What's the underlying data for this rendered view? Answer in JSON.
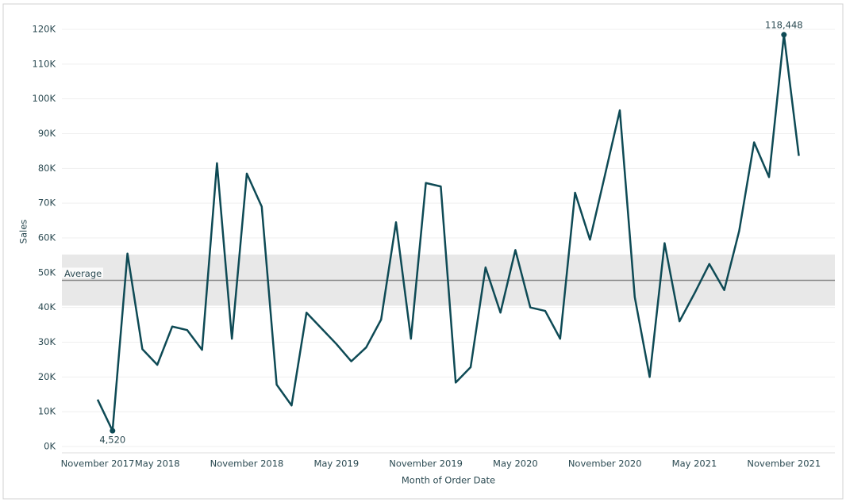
{
  "chart_data": {
    "type": "line",
    "x_label": "Month of Order Date",
    "y_label": "Sales",
    "categories": [
      "November 2017",
      null,
      null,
      null,
      "May 2018",
      null,
      null,
      null,
      null,
      null,
      "November 2018",
      null,
      null,
      null,
      null,
      null,
      "May 2019",
      null,
      null,
      null,
      null,
      null,
      "November 2019",
      null,
      null,
      null,
      null,
      null,
      "May 2020",
      null,
      null,
      null,
      null,
      null,
      "November 2020",
      null,
      null,
      null,
      null,
      null,
      "May 2021",
      null,
      null,
      null,
      null,
      null,
      "November 2021",
      null
    ],
    "series": [
      {
        "name": "Sales",
        "color": "#0e4a55",
        "values": [
          13500,
          4520,
          55500,
          28000,
          23500,
          34500,
          33500,
          27800,
          81500,
          31000,
          78500,
          69000,
          17800,
          11800,
          38500,
          34000,
          29500,
          24500,
          28500,
          36500,
          64500,
          31000,
          75800,
          74800,
          18400,
          22800,
          51500,
          38500,
          56500,
          40000,
          39000,
          31000,
          73000,
          59500,
          78000,
          96700,
          43000,
          20000,
          58500,
          36000,
          44000,
          52500,
          45000,
          62000,
          87500,
          77500,
          118448,
          83600
        ],
        "value_labels": [
          null,
          "4,520",
          null,
          null,
          null,
          null,
          null,
          null,
          null,
          null,
          null,
          null,
          null,
          null,
          null,
          null,
          null,
          null,
          null,
          null,
          null,
          null,
          null,
          null,
          null,
          null,
          null,
          null,
          null,
          null,
          null,
          null,
          null,
          null,
          null,
          null,
          null,
          null,
          null,
          null,
          null,
          null,
          null,
          null,
          null,
          null,
          "118,448",
          null
        ]
      }
    ],
    "reference_line": {
      "label": "Average",
      "value": 47800,
      "band": [
        40500,
        55200
      ],
      "color": "#888888",
      "band_color": "#e8e8e8"
    },
    "ylim": [
      0,
      120000
    ],
    "yticks": [
      {
        "value": 0,
        "label": "0K"
      },
      {
        "value": 10000,
        "label": "10K"
      },
      {
        "value": 20000,
        "label": "20K"
      },
      {
        "value": 30000,
        "label": "30K"
      },
      {
        "value": 40000,
        "label": "40K"
      },
      {
        "value": 50000,
        "label": "50K"
      },
      {
        "value": 60000,
        "label": "60K"
      },
      {
        "value": 70000,
        "label": "70K"
      },
      {
        "value": 80000,
        "label": "80K"
      },
      {
        "value": 90000,
        "label": "90K"
      },
      {
        "value": 100000,
        "label": "100K"
      },
      {
        "value": 110000,
        "label": "110K"
      },
      {
        "value": 120000,
        "label": "120K"
      }
    ],
    "grid": true
  }
}
